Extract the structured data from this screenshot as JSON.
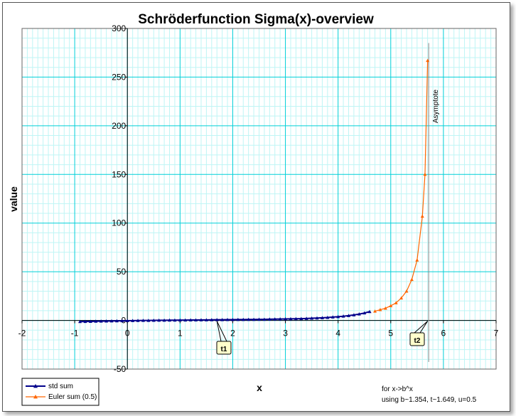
{
  "chart_data": {
    "type": "line",
    "title": "Schröderfunction Sigma(x)-overview",
    "xlabel": "x",
    "ylabel": "value",
    "xlim": [
      -2,
      7
    ],
    "ylim": [
      -50,
      300
    ],
    "xticks": [
      "-2",
      "-1",
      "0",
      "1",
      "2",
      "3",
      "4",
      "5",
      "6",
      "7"
    ],
    "yticks": [
      "-50",
      "0",
      "50",
      "100",
      "150",
      "200",
      "250",
      "300"
    ],
    "grid": "major and minor",
    "legend_position": "bottom-left",
    "series": [
      {
        "name": "std sum",
        "color": "#00008B",
        "marker": "triangle",
        "x": [
          -0.9,
          -0.8,
          -0.7,
          -0.6,
          -0.5,
          -0.4,
          -0.3,
          -0.2,
          -0.1,
          0,
          0.1,
          0.2,
          0.3,
          0.4,
          0.5,
          0.6,
          0.7,
          0.8,
          0.9,
          1.0,
          1.1,
          1.2,
          1.3,
          1.4,
          1.5,
          1.6,
          1.7,
          1.8,
          1.9,
          2.0,
          2.1,
          2.2,
          2.3,
          2.4,
          2.5,
          2.6,
          2.7,
          2.8,
          2.9,
          3.0,
          3.1,
          3.2,
          3.3,
          3.4,
          3.5,
          3.6,
          3.7,
          3.8,
          3.9,
          4.0,
          4.1,
          4.2,
          4.3,
          4.4,
          4.5,
          4.6
        ],
        "values": [
          -1.2,
          -1.1,
          -1.0,
          -0.9,
          -0.8,
          -0.7,
          -0.6,
          -0.5,
          -0.4,
          -0.3,
          -0.2,
          -0.1,
          -0.05,
          0,
          0.05,
          0.1,
          0.15,
          0.2,
          0.25,
          0.3,
          0.35,
          0.4,
          0.45,
          0.5,
          0.55,
          0.6,
          0.65,
          0.7,
          0.75,
          0.8,
          0.85,
          0.9,
          0.95,
          1.0,
          1.05,
          1.1,
          1.2,
          1.3,
          1.4,
          1.5,
          1.6,
          1.7,
          1.8,
          2.0,
          2.2,
          2.4,
          2.7,
          3.0,
          3.4,
          3.8,
          4.3,
          4.9,
          5.6,
          6.5,
          7.6,
          9.0
        ]
      },
      {
        "name": "Euler sum (0.5)",
        "color": "#FF6600",
        "marker": "triangle",
        "x": [
          4.7,
          4.8,
          4.9,
          5.0,
          5.1,
          5.2,
          5.3,
          5.4,
          5.5,
          5.6,
          5.65,
          5.7
        ],
        "values": [
          9.5,
          11.0,
          12.5,
          15.0,
          18.0,
          23.0,
          30.0,
          42.0,
          62.0,
          107.0,
          150.0,
          267.0
        ]
      }
    ],
    "annotations": {
      "t1": {
        "label": "t1",
        "x": 1.7
      },
      "t2": {
        "label": "t2",
        "x": 5.7
      },
      "asymptote": {
        "label": "Asymptote",
        "x": 5.72
      },
      "note_line1": "for x->b^x",
      "note_line2": "using b~1.354, t~1.649, u=0.5"
    }
  }
}
